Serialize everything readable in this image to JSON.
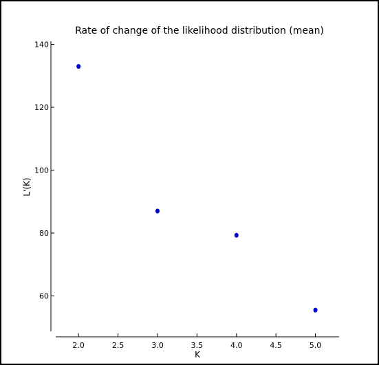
{
  "chart_data": {
    "type": "scatter",
    "title": "Rate of change of the likelihood distribution (mean)",
    "xlabel": "K",
    "ylabel": "L'(K)",
    "xlim": [
      1.65,
      5.3
    ],
    "ylim": [
      47,
      141
    ],
    "xticks": [
      2.0,
      2.5,
      3.0,
      3.5,
      4.0,
      4.5,
      5.0
    ],
    "xtick_labels": [
      "2.0",
      "2.5",
      "3.0",
      "3.5",
      "4.0",
      "4.5",
      "5.0"
    ],
    "yticks": [
      60,
      80,
      100,
      120,
      140
    ],
    "ytick_labels": [
      "60",
      "80",
      "100",
      "120",
      "140"
    ],
    "grid": false,
    "point_color": "#0000cc",
    "series": [
      {
        "x": [
          2.0,
          3.0,
          4.0,
          5.0
        ],
        "y": [
          133,
          87,
          79.3,
          55.5
        ]
      }
    ]
  }
}
